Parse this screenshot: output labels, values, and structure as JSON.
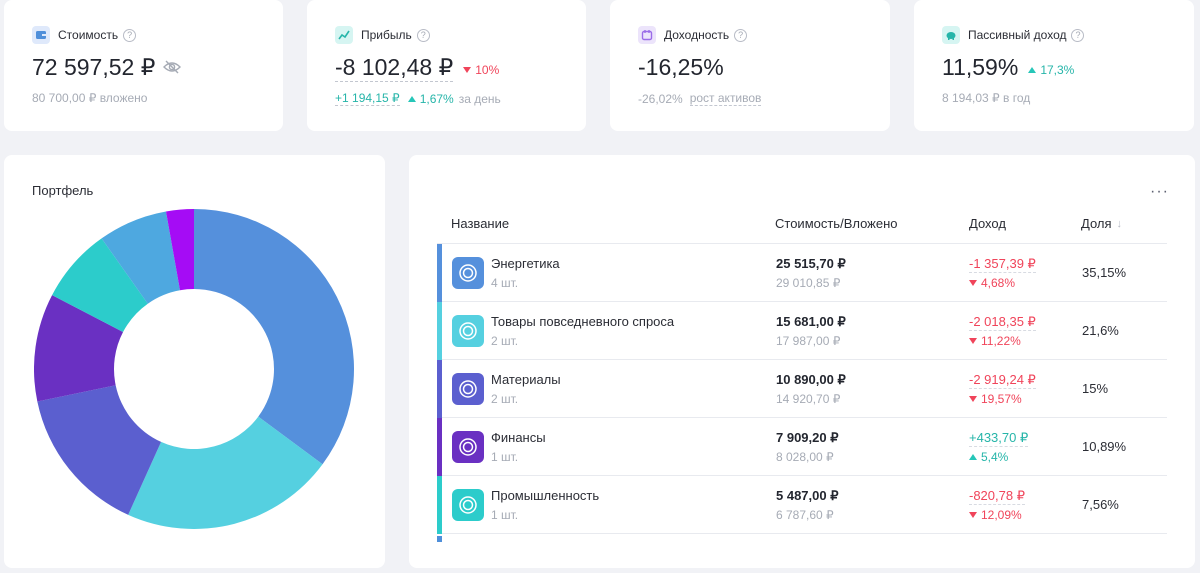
{
  "stats": [
    {
      "title": "Стоимость",
      "icon": "wallet-icon",
      "icon_bg": "#dfe9fb",
      "icon_color": "#4f8fda",
      "value": "72 597,52 ₽",
      "sub_text": "80 700,00 ₽ вложено"
    },
    {
      "title": "Прибыль",
      "icon": "chart-line-icon",
      "icon_bg": "#d6f5f2",
      "icon_color": "#26b5a9",
      "value": "-8 102,48 ₽",
      "delta": "10%",
      "delta_dir": "down",
      "sub_value": "+1 194,15 ₽",
      "sub_pct": "1,67%",
      "sub_suffix": "за день"
    },
    {
      "title": "Доходность",
      "icon": "calendar-icon",
      "icon_bg": "#ece4fb",
      "icon_color": "#9b6ce8",
      "value": "-16,25%",
      "sub_value": "-26,02%",
      "sub_link": "рост активов"
    },
    {
      "title": "Пассивный доход",
      "icon": "piggy-bank-icon",
      "icon_bg": "#d6f5f2",
      "icon_color": "#26b5a9",
      "value": "11,59%",
      "delta": "17,3%",
      "delta_dir": "up",
      "sub_text": "8 194,03 ₽ в год"
    }
  ],
  "help_glyph": "?",
  "portfolio": {
    "title": "Портфель",
    "segments": [
      {
        "label": "Энергетика",
        "share": 35.15,
        "color": "#5590dc"
      },
      {
        "label": "Товары повседневного спроса",
        "share": 21.6,
        "color": "#55d0e0"
      },
      {
        "label": "Материалы",
        "share": 15,
        "color": "#5b5fcf"
      },
      {
        "label": "Финансы",
        "share": 10.89,
        "color": "#6a30c2"
      },
      {
        "label": "Промышленность",
        "share": 7.56,
        "color": "#2ccccb"
      },
      {
        "label": "",
        "share": 7.0,
        "color": "#4ea8e0"
      },
      {
        "label": "",
        "share": 2.8,
        "color": "#a50cf5"
      }
    ]
  },
  "table": {
    "more_label": "···",
    "columns": {
      "name": "Название",
      "value": "Стоимость/Вложено",
      "income": "Доход",
      "share": "Доля"
    },
    "sort_glyph": "↓",
    "rows": [
      {
        "name": "Энергетика",
        "count": "4 шт.",
        "value": "25 515,70 ₽",
        "invested": "29 010,85 ₽",
        "income": "-1 357,39 ₽",
        "income_pct": "4,68%",
        "dir": "down",
        "share": "35,15%",
        "color": "#5590dc"
      },
      {
        "name": "Товары повседневного спроса",
        "count": "2 шт.",
        "value": "15 681,00 ₽",
        "invested": "17 987,00 ₽",
        "income": "-2 018,35 ₽",
        "income_pct": "11,22%",
        "dir": "down",
        "share": "21,6%",
        "color": "#55d0e0"
      },
      {
        "name": "Материалы",
        "count": "2 шт.",
        "value": "10 890,00 ₽",
        "invested": "14 920,70 ₽",
        "income": "-2 919,24 ₽",
        "income_pct": "19,57%",
        "dir": "down",
        "share": "15%",
        "color": "#5b5fcf"
      },
      {
        "name": "Финансы",
        "count": "1 шт.",
        "value": "7 909,20 ₽",
        "invested": "8 028,00 ₽",
        "income": "+433,70 ₽",
        "income_pct": "5,4%",
        "dir": "up",
        "share": "10,89%",
        "color": "#6a30c2"
      },
      {
        "name": "Промышленность",
        "count": "1 шт.",
        "value": "5 487,00 ₽",
        "invested": "6 787,60 ₽",
        "income": "-820,78 ₽",
        "income_pct": "12,09%",
        "dir": "down",
        "share": "7,56%",
        "color": "#2ccccb"
      }
    ]
  }
}
